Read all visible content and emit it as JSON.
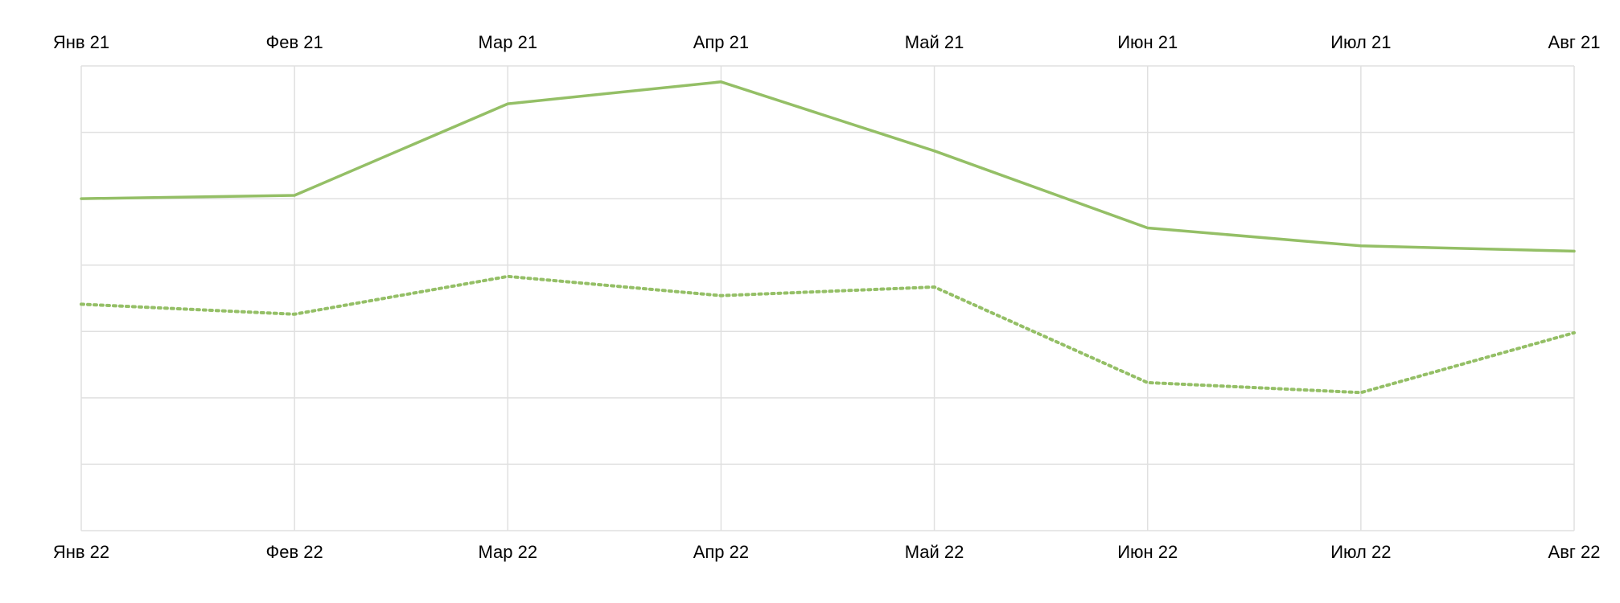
{
  "chart_data": {
    "type": "line",
    "title": "",
    "xlabel": "",
    "ylabel": "",
    "top_axis": {
      "tick_labels": [
        "Янв 21",
        "Фев 21",
        "Мар 21",
        "Апр 21",
        "Май 21",
        "Июн 21",
        "Июл 21",
        "Авг 21"
      ]
    },
    "bottom_axis": {
      "tick_labels": [
        "Янв 22",
        "Фев 22",
        "Мар 22",
        "Апр 22",
        "Май 22",
        "Июн 22",
        "Июл 22",
        "Авг 22"
      ]
    },
    "ylim": [
      0,
      7
    ],
    "y_gridlines": [
      0,
      1,
      2,
      3,
      4,
      5,
      6,
      7
    ],
    "y_tick_labels_shown": false,
    "grid": true,
    "legend": "none",
    "series": [
      {
        "axis": "top",
        "style": "solid",
        "color": "#94bf66",
        "values": [
          5.0,
          5.05,
          6.43,
          6.76,
          5.72,
          4.56,
          4.29,
          4.21
        ]
      },
      {
        "axis": "bottom",
        "style": "dotted",
        "color": "#94bf66",
        "values": [
          3.41,
          3.26,
          3.83,
          3.54,
          3.67,
          2.23,
          2.08,
          2.98
        ]
      }
    ],
    "colors": {
      "grid": "#e0e0e0",
      "line": "#94bf66",
      "text": "#000000"
    }
  }
}
